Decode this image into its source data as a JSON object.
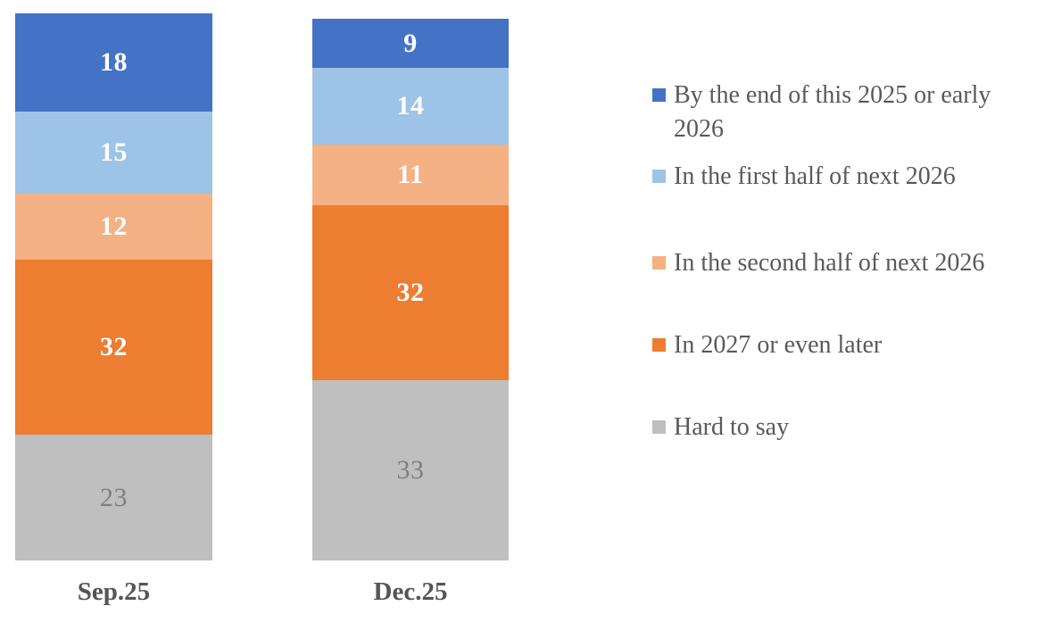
{
  "chart_data": {
    "type": "bar",
    "subtype": "stacked-column",
    "title": "",
    "xlabel": "",
    "ylabel": "",
    "ylim": [
      0,
      100
    ],
    "grid": false,
    "axis_lines": false,
    "legend_position": "right",
    "categories": [
      "Sep.25",
      "Dec.25"
    ],
    "series": [
      {
        "name": "By the end of this 2025 or early 2026",
        "color": "#4472C4",
        "values": [
          18,
          9
        ],
        "label_color": "#FFFFFF",
        "label_bold": true
      },
      {
        "name": "In the first half of next 2026",
        "color": "#9DC3E6",
        "values": [
          15,
          14
        ],
        "label_color": "#FFFFFF",
        "label_bold": true
      },
      {
        "name": "In the second half of next 2026",
        "color": "#F4B183",
        "values": [
          12,
          11
        ],
        "label_color": "#FFFFFF",
        "label_bold": true
      },
      {
        "name": "In 2027 or even later",
        "color": "#ED7D31",
        "values": [
          32,
          32
        ],
        "label_color": "#FFFFFF",
        "label_bold": true
      },
      {
        "name": "Hard to say",
        "color": "#BFBFBF",
        "values": [
          23,
          33
        ],
        "label_color": "#7F7F7F",
        "label_bold": false
      }
    ],
    "text_colors": {
      "category_labels": "#555555",
      "legend_text": "#595959"
    }
  }
}
